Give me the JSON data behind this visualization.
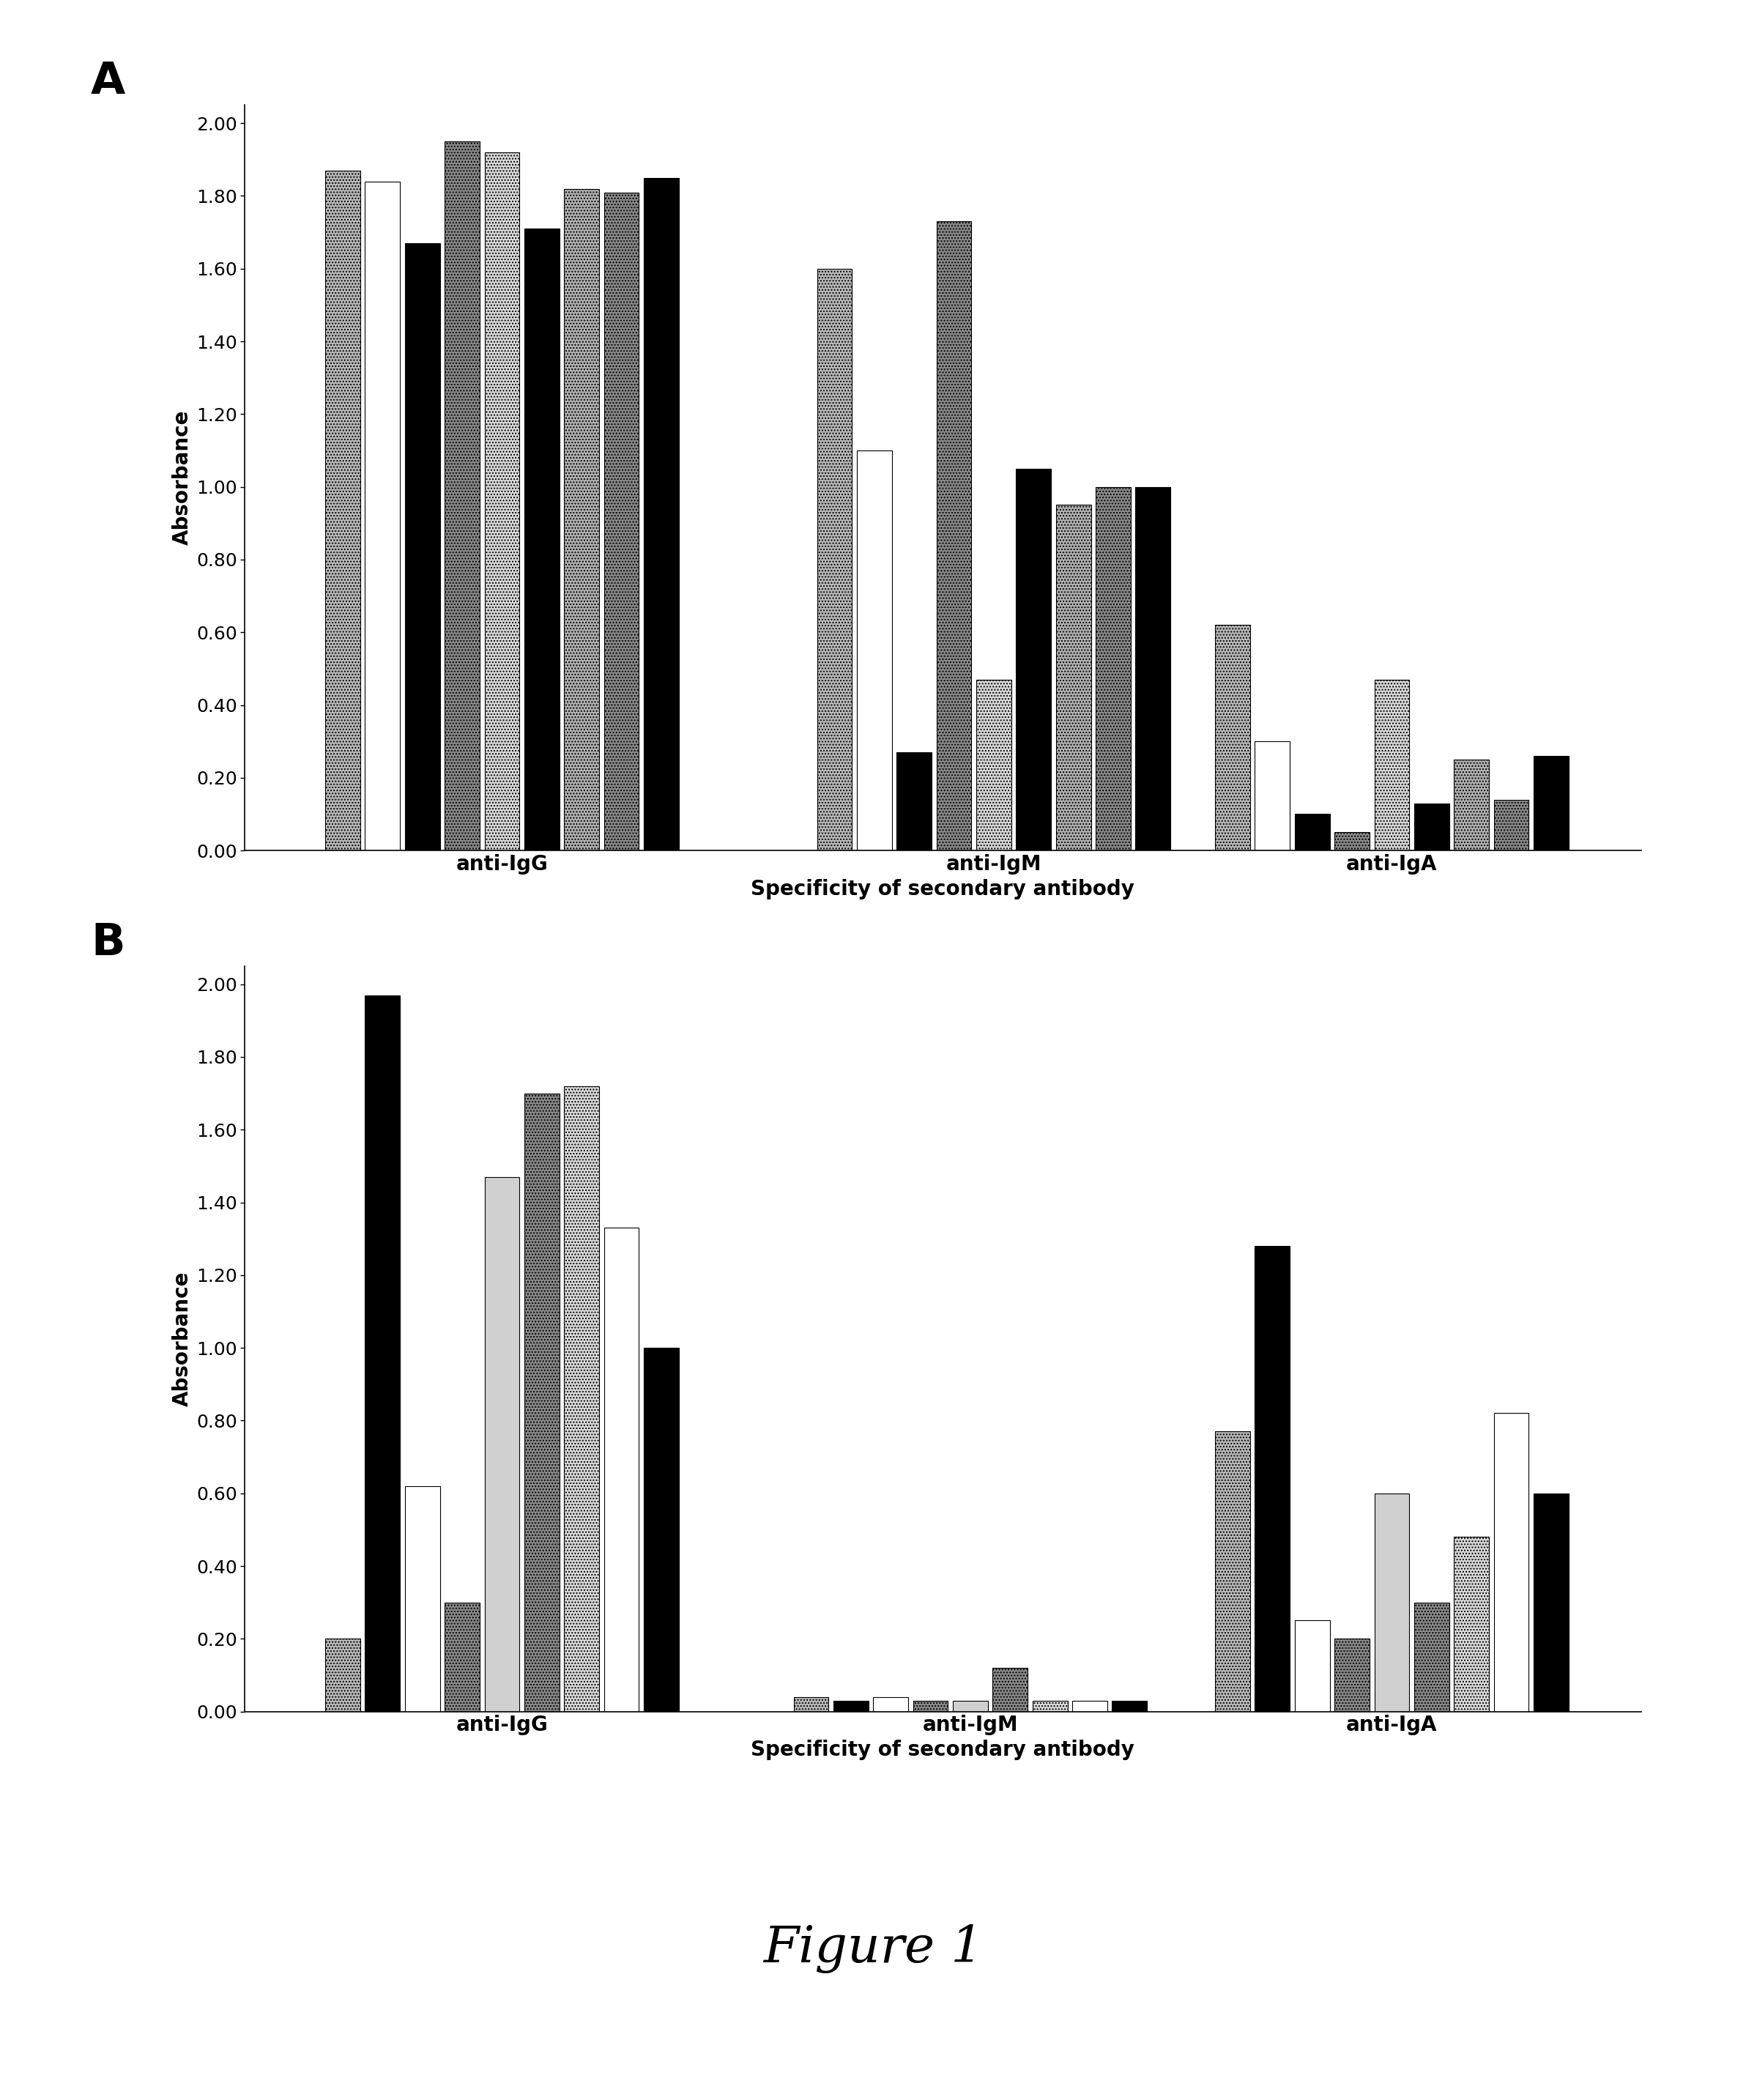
{
  "panel_A": {
    "groups": [
      "anti-IgG",
      "anti-IgM",
      "anti-IgA"
    ],
    "data": {
      "anti-IgG": [
        1.87,
        1.84,
        1.67,
        1.95,
        1.92,
        1.71,
        1.82,
        1.81,
        1.85
      ],
      "anti-IgM": [
        1.6,
        1.1,
        0.27,
        1.73,
        0.47,
        1.05,
        0.95,
        1.0,
        1.0
      ],
      "anti-IgA": [
        0.62,
        0.3,
        0.1,
        0.05,
        0.47,
        0.13,
        0.25,
        0.14,
        0.26
      ]
    },
    "bar_facecolors": [
      "#b8b8b8",
      "#ffffff",
      "#000000",
      "#888888",
      "#d8d8d8",
      "#000000",
      "#b0b0b0",
      "#888888",
      "#000000"
    ],
    "bar_hatches": [
      "....",
      "",
      "",
      "....",
      "....",
      "",
      "....",
      "....",
      ""
    ],
    "bar_edgecolors": [
      "#000000",
      "#000000",
      "#000000",
      "#000000",
      "#000000",
      "#000000",
      "#000000",
      "#000000",
      "#000000"
    ],
    "ylabel": "Absorbance",
    "xlabel": "Specificity of secondary antibody",
    "ylim": [
      0.0,
      2.05
    ],
    "yticks": [
      0.0,
      0.2,
      0.4,
      0.6,
      0.8,
      1.0,
      1.2,
      1.4,
      1.6,
      1.8,
      2.0
    ],
    "panel_label": "A"
  },
  "panel_B": {
    "groups": [
      "anti-IgG",
      "anti-IgM",
      "anti-IgA"
    ],
    "data": {
      "anti-IgG": [
        0.2,
        1.97,
        0.62,
        0.3,
        1.47,
        1.7,
        1.72,
        1.33,
        1.0
      ],
      "anti-IgM": [
        0.04,
        0.03,
        0.04,
        0.03,
        0.03,
        0.12,
        0.03,
        0.03,
        0.03
      ],
      "anti-IgA": [
        0.77,
        1.28,
        0.25,
        0.2,
        0.6,
        0.3,
        0.48,
        0.82,
        0.6
      ]
    },
    "bar_facecolors": [
      "#b8b8b8",
      "#000000",
      "#ffffff",
      "#888888",
      "#d0d0d0",
      "#888888",
      "#d8d8d8",
      "#ffffff",
      "#000000"
    ],
    "bar_hatches": [
      "....",
      "",
      "",
      "....",
      "",
      "....",
      "....",
      "",
      ""
    ],
    "bar_edgecolors": [
      "#000000",
      "#000000",
      "#000000",
      "#000000",
      "#000000",
      "#000000",
      "#000000",
      "#000000",
      "#000000"
    ],
    "ylabel": "Absorbance",
    "xlabel": "Specificity of secondary antibody",
    "ylim": [
      0.0,
      2.05
    ],
    "yticks": [
      0.0,
      0.2,
      0.4,
      0.6,
      0.8,
      1.0,
      1.2,
      1.4,
      1.6,
      1.8,
      2.0
    ],
    "panel_label": "B"
  },
  "figure_title": "Figure 1",
  "bar_width": 0.085,
  "group_centers_A": [
    0.5,
    1.55,
    2.4
  ],
  "group_centers_B": [
    0.5,
    1.5,
    2.4
  ]
}
